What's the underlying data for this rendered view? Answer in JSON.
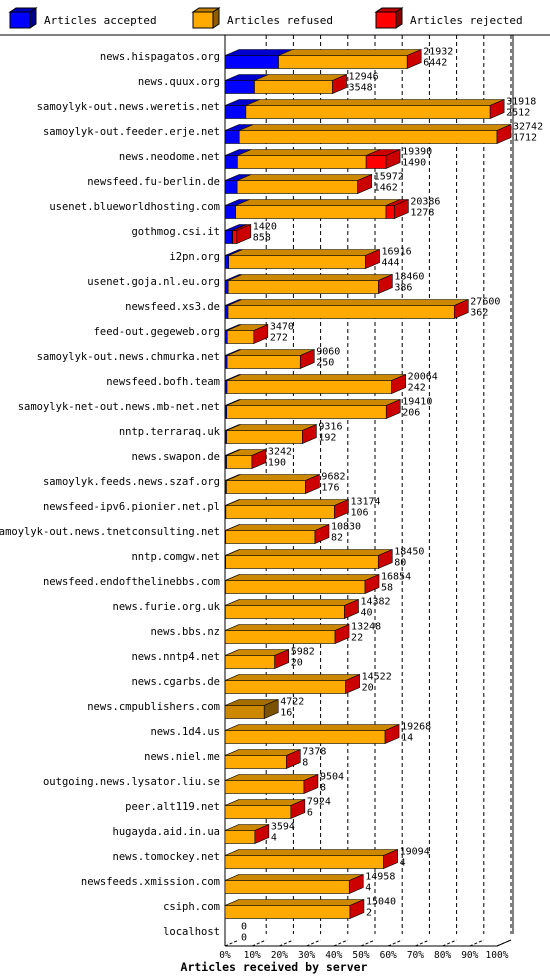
{
  "chart_data": {
    "type": "bar",
    "orientation": "horizontal",
    "stacked": true,
    "xlabel": "Articles received by server",
    "x_ticks": [
      "0%",
      "10%",
      "20%",
      "30%",
      "40%",
      "50%",
      "60%",
      "70%",
      "80%",
      "90%",
      "100%"
    ],
    "xlim": [
      0,
      100
    ],
    "legend_position": "top",
    "grid": "vertical dashed",
    "colors": {
      "accepted": "#0000ff",
      "refused": "#ffaa00",
      "rejected": "#ff0000",
      "empty": "#cc8800"
    },
    "series": [
      {
        "name": "Articles accepted",
        "color": "#0000ff"
      },
      {
        "name": "Articles refused",
        "color": "#ffaa00"
      },
      {
        "name": "Articles rejected",
        "color": "#ff0000"
      }
    ],
    "categories": [
      "news.hispagatos.org",
      "news.quux.org",
      "samoylyk-out.news.weretis.net",
      "samoylyk-out.feeder.erje.net",
      "news.neodome.net",
      "newsfeed.fu-berlin.de",
      "usenet.blueworldhosting.com",
      "gothmog.csi.it",
      "i2pn.org",
      "usenet.goja.nl.eu.org",
      "newsfeed.xs3.de",
      "feed-out.gegeweb.org",
      "samoylyk-out.news.chmurka.net",
      "newsfeed.bofh.team",
      "samoylyk-net-out.news.mb-net.net",
      "nntp.terraraq.uk",
      "news.swapon.de",
      "samoylyk.feeds.news.szaf.org",
      "newsfeed-ipv6.pionier.net.pl",
      "samoylyk-out.news.tnetconsulting.net",
      "nntp.comgw.net",
      "newsfeed.endofthelinebbs.com",
      "news.furie.org.uk",
      "news.bbs.nz",
      "news.nntp4.net",
      "news.cgarbs.de",
      "news.cmpublishers.com",
      "news.1d4.us",
      "news.niel.me",
      "outgoing.news.lysator.liu.se",
      "peer.alt119.net",
      "hugayda.aid.in.ua",
      "news.tomockey.net",
      "newsfeeds.xmission.com",
      "csiph.com",
      "localhost"
    ],
    "totals": [
      21932,
      12946,
      31918,
      32742,
      19390,
      15972,
      20386,
      1420,
      16916,
      18460,
      27600,
      3470,
      9060,
      20064,
      19410,
      9316,
      3242,
      9682,
      13174,
      10830,
      18450,
      16854,
      14382,
      13248,
      5982,
      14522,
      4722,
      19268,
      7378,
      9504,
      7924,
      3594,
      19094,
      14958,
      15040,
      0
    ],
    "accepted": [
      6442,
      3548,
      2512,
      1712,
      1490,
      1462,
      1278,
      858,
      444,
      386,
      362,
      272,
      250,
      242,
      206,
      192,
      190,
      176,
      106,
      82,
      80,
      58,
      40,
      22,
      20,
      20,
      16,
      14,
      8,
      8,
      6,
      4,
      4,
      4,
      2,
      0
    ],
    "rejected_estimate": [
      0,
      0,
      0,
      0,
      2400,
      0,
      1000,
      500,
      0,
      0,
      0,
      0,
      0,
      0,
      0,
      0,
      0,
      0,
      0,
      0,
      0,
      0,
      0,
      0,
      0,
      0,
      0,
      0,
      0,
      0,
      0,
      0,
      0,
      0,
      0,
      0
    ],
    "empty_bars": [
      "news.cmpublishers.com"
    ]
  }
}
